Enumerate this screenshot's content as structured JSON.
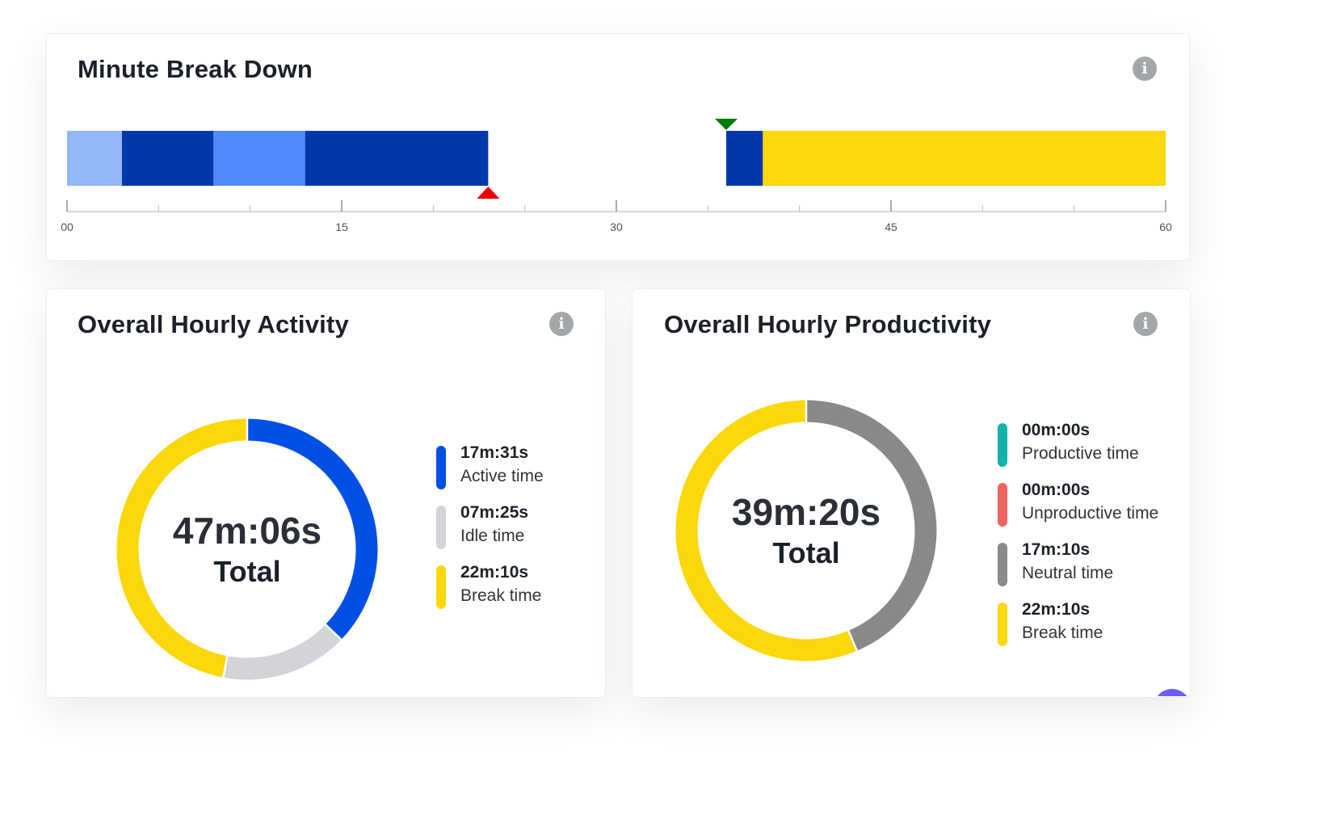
{
  "minute_breakdown": {
    "title": "Minute Break Down",
    "scale": {
      "min": 0,
      "max": 60,
      "tick_labels": [
        "00",
        "15",
        "30",
        "45",
        "60"
      ],
      "minor_tick_minutes": [
        5,
        10,
        20,
        25,
        35,
        40,
        50,
        55
      ]
    },
    "segments": [
      {
        "start": 0,
        "end": 3,
        "color": "#93b6f8",
        "kind": "idle"
      },
      {
        "start": 3,
        "end": 8,
        "color": "#0038aa",
        "kind": "active"
      },
      {
        "start": 8,
        "end": 13,
        "color": "#4f8aff",
        "kind": "idle"
      },
      {
        "start": 13,
        "end": 18,
        "color": "#0038aa",
        "kind": "active"
      },
      {
        "start": 18,
        "end": 23,
        "color": "#0038aa",
        "kind": "active"
      },
      {
        "start": 36,
        "end": 38,
        "color": "#0038aa",
        "kind": "active"
      },
      {
        "start": 38,
        "end": 60,
        "color": "#fcd70a",
        "kind": "break"
      }
    ],
    "markers": [
      {
        "at": 23,
        "type": "stop",
        "color": "#ef0000"
      },
      {
        "at": 36,
        "type": "start",
        "color": "#067a06"
      }
    ]
  },
  "hourly_activity": {
    "title": "Overall Hourly Activity",
    "total_value": "47m:06s",
    "total_label": "Total",
    "legend": [
      {
        "value": "17m:31s",
        "label": "Active time",
        "color": "#0050e6"
      },
      {
        "value": "07m:25s",
        "label": "Idle time",
        "color": "#d2d4d9"
      },
      {
        "value": "22m:10s",
        "label": "Break time",
        "color": "#fcd70a"
      }
    ],
    "donut_seconds": [
      1051,
      445,
      1330
    ]
  },
  "hourly_productivity": {
    "title": "Overall Hourly Productivity",
    "total_value": "39m:20s",
    "total_label": "Total",
    "legend": [
      {
        "value": "00m:00s",
        "label": "Productive time",
        "color": "#10b3a8"
      },
      {
        "value": "00m:00s",
        "label": "Unproductive time",
        "color": "#ee6360"
      },
      {
        "value": "17m:10s",
        "label": "Neutral time",
        "color": "#898989"
      },
      {
        "value": "22m:10s",
        "label": "Break time",
        "color": "#fcd70a"
      }
    ],
    "donut_seconds": [
      0,
      0,
      1030,
      1330
    ]
  },
  "icons": {
    "info": "info-icon",
    "info_glyph": "i"
  }
}
